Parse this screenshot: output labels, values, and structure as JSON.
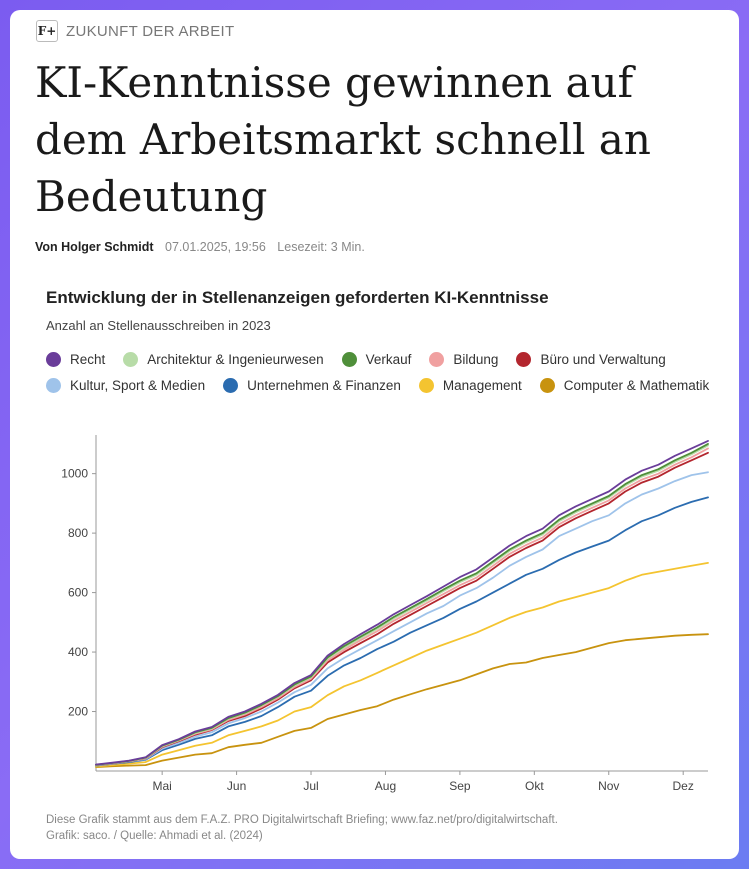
{
  "kicker": "ZUKUNFT DER ARBEIT",
  "logo_text": "F+",
  "headline": "KI-Kenntnisse gewinnen auf dem Arbeitsmarkt schnell an Bedeutung",
  "byline": {
    "author": "Von Holger Schmidt",
    "datetime": "07.01.2025, 19:56",
    "reading_time": "Lesezeit: 3 Min."
  },
  "chart_data": {
    "type": "line",
    "title": "Entwicklung der in Stellenanzeigen geforderten KI-Kenntnisse",
    "subtitle": "Anzahl an Stellenausschreiben in 2023",
    "xlabel": "",
    "ylabel": "",
    "ylim": [
      0,
      1130
    ],
    "yticks": [
      200,
      400,
      600,
      800,
      1000
    ],
    "xlim": [
      0,
      37
    ],
    "xticks": [
      {
        "label": "Mai",
        "x": 4
      },
      {
        "label": "Jun",
        "x": 8.5
      },
      {
        "label": "Jul",
        "x": 13
      },
      {
        "label": "Aug",
        "x": 17.5
      },
      {
        "label": "Sep",
        "x": 22
      },
      {
        "label": "Okt",
        "x": 26.5
      },
      {
        "label": "Nov",
        "x": 31
      },
      {
        "label": "Dez",
        "x": 35.5
      }
    ],
    "x": [
      0,
      1,
      2,
      3,
      4,
      5,
      6,
      7,
      8,
      9,
      10,
      11,
      12,
      13,
      14,
      15,
      16,
      17,
      18,
      19,
      20,
      21,
      22,
      23,
      24,
      25,
      26,
      27,
      28,
      29,
      30,
      31,
      32,
      33,
      34,
      35,
      36,
      37
    ],
    "series": [
      {
        "name": "Computer & Mathematik",
        "color": "#c8930f",
        "values": [
          13,
          16,
          18,
          20,
          35,
          45,
          55,
          60,
          80,
          88,
          95,
          115,
          135,
          145,
          175,
          190,
          205,
          218,
          240,
          258,
          275,
          290,
          305,
          325,
          345,
          360,
          365,
          380,
          390,
          400,
          415,
          430,
          440,
          445,
          450,
          455,
          458,
          460
        ]
      },
      {
        "name": "Management",
        "color": "#f4c430",
        "values": [
          15,
          20,
          25,
          30,
          55,
          70,
          85,
          95,
          120,
          135,
          150,
          170,
          200,
          215,
          255,
          285,
          305,
          330,
          355,
          380,
          405,
          425,
          445,
          465,
          490,
          515,
          535,
          550,
          570,
          585,
          600,
          615,
          640,
          660,
          670,
          680,
          690,
          700
        ]
      },
      {
        "name": "Unternehmen & Finanzen",
        "color": "#2b6cb0",
        "values": [
          18,
          24,
          30,
          38,
          70,
          88,
          108,
          120,
          150,
          165,
          185,
          215,
          250,
          270,
          320,
          355,
          380,
          410,
          435,
          465,
          490,
          515,
          545,
          570,
          600,
          630,
          660,
          680,
          710,
          735,
          755,
          775,
          810,
          840,
          860,
          885,
          905,
          920
        ]
      },
      {
        "name": "Kultur, Sport & Medien",
        "color": "#9fc3ea",
        "values": [
          19,
          25,
          32,
          40,
          75,
          95,
          115,
          130,
          160,
          178,
          200,
          230,
          265,
          290,
          345,
          380,
          410,
          440,
          470,
          500,
          530,
          555,
          590,
          615,
          650,
          690,
          720,
          745,
          790,
          815,
          840,
          860,
          900,
          930,
          950,
          975,
          995,
          1005
        ]
      },
      {
        "name": "Büro und Verwaltung",
        "color": "#b3262e",
        "values": [
          20,
          26,
          33,
          42,
          80,
          100,
          122,
          138,
          168,
          185,
          210,
          240,
          278,
          305,
          365,
          400,
          430,
          460,
          495,
          525,
          555,
          585,
          615,
          640,
          680,
          720,
          750,
          775,
          820,
          850,
          875,
          900,
          940,
          970,
          990,
          1020,
          1045,
          1070
        ]
      },
      {
        "name": "Bildung",
        "color": "#f0a0a0",
        "values": [
          20,
          26,
          33,
          43,
          82,
          102,
          125,
          140,
          172,
          190,
          215,
          245,
          283,
          310,
          372,
          408,
          440,
          470,
          505,
          535,
          565,
          595,
          625,
          650,
          690,
          730,
          760,
          785,
          830,
          860,
          885,
          910,
          950,
          980,
          1000,
          1030,
          1055,
          1085
        ]
      },
      {
        "name": "Architektur & Ingenieurwesen",
        "color": "#b8dca8",
        "values": [
          21,
          27,
          34,
          44,
          84,
          104,
          128,
          143,
          176,
          194,
          220,
          250,
          288,
          315,
          378,
          415,
          447,
          478,
          513,
          543,
          573,
          605,
          635,
          660,
          700,
          740,
          770,
          795,
          840,
          870,
          895,
          920,
          960,
          990,
          1010,
          1040,
          1065,
          1095
        ]
      },
      {
        "name": "Verkauf",
        "color": "#4f8f3a",
        "values": [
          21,
          27,
          34,
          45,
          85,
          105,
          130,
          145,
          178,
          196,
          222,
          252,
          291,
          318,
          382,
          420,
          452,
          483,
          518,
          548,
          578,
          610,
          640,
          665,
          705,
          745,
          775,
          800,
          845,
          875,
          900,
          925,
          965,
          995,
          1015,
          1045,
          1070,
          1100
        ]
      },
      {
        "name": "Recht",
        "color": "#6a3d9a",
        "values": [
          22,
          28,
          35,
          46,
          87,
          107,
          133,
          148,
          182,
          200,
          226,
          256,
          296,
          323,
          388,
          427,
          460,
          492,
          527,
          558,
          588,
          620,
          652,
          678,
          718,
          758,
          790,
          815,
          860,
          890,
          915,
          940,
          980,
          1010,
          1030,
          1060,
          1085,
          1110
        ]
      }
    ]
  },
  "legend": {
    "row1": [
      {
        "label": "Recht",
        "color": "#6a3d9a"
      },
      {
        "label": "Architektur & Ingenieurwesen",
        "color": "#b8dca8"
      },
      {
        "label": "Verkauf",
        "color": "#4f8f3a"
      },
      {
        "label": "Bildung",
        "color": "#f0a0a0"
      },
      {
        "label": "Büro und Verwaltung",
        "color": "#b3262e"
      }
    ],
    "row2": [
      {
        "label": "Kultur, Sport & Medien",
        "color": "#9fc3ea"
      },
      {
        "label": "Unternehmen & Finanzen",
        "color": "#2b6cb0"
      },
      {
        "label": "Management",
        "color": "#f4c430"
      },
      {
        "label": "Computer & Mathematik",
        "color": "#c8930f"
      }
    ]
  },
  "footnote": {
    "line1": "Diese Grafik stammt aus dem F.A.Z. PRO Digitalwirtschaft Briefing; www.faz.net/pro/digitalwirtschaft.",
    "line2": "Grafik: saco. / Quelle: Ahmadi et al. (2024)"
  }
}
